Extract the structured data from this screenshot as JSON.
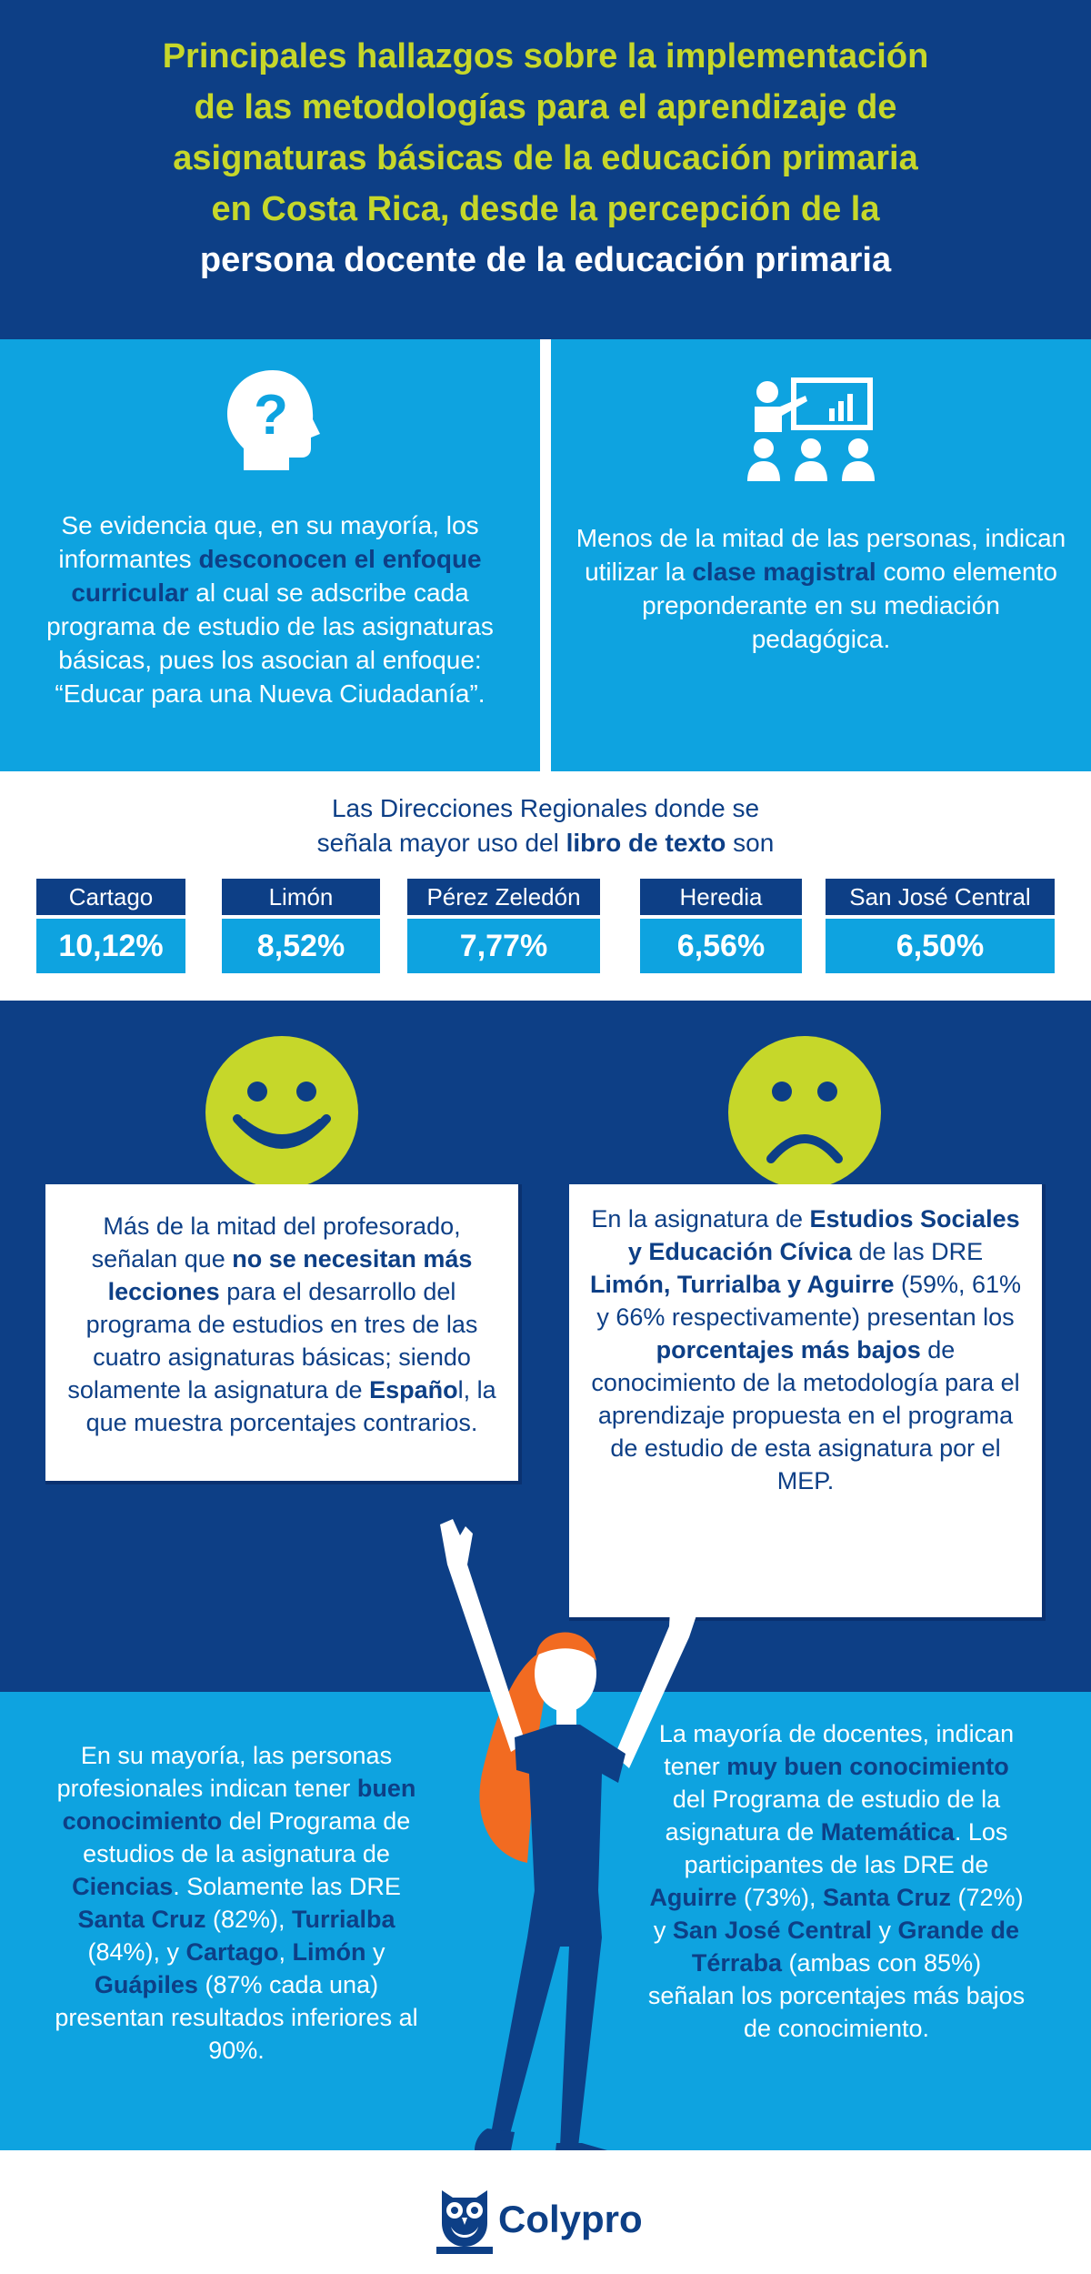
{
  "header": {
    "title_line1": "Principales hallazgos sobre la implementación",
    "title_line2": "de las metodologías para el aprendizaje de",
    "title_line3": "asignaturas básicas de la educación primaria",
    "title_line4": "en Costa Rica, desde la percepción de la",
    "title_line5": "persona docente de la educación primaria"
  },
  "finding_curriculum": {
    "icon": "head-question-icon",
    "text_before": "Se evidencia que, en su mayoría, los informantes ",
    "bold": "desconocen el enfoque curricular",
    "text_after": " al cual se adscribe cada programa de estudio de las asignaturas básicas, pues los asocian al enfoque: “Educar para una Nueva Ciudadanía”."
  },
  "finding_lecture": {
    "icon": "presentation-audience-icon",
    "text_before": "Menos de la mitad de las personas, indican utilizar la ",
    "bold": "clase magistral",
    "text_after": " como elemento preponderante en su mediación pedagógica."
  },
  "regions": {
    "intro_line1": "Las Direcciones Regionales donde se",
    "intro_line2_before": "señala mayor uso del ",
    "intro_line2_bold": "libro de texto",
    "intro_line2_after": " son",
    "items": [
      {
        "name": "Cartago",
        "percent": "10,12%"
      },
      {
        "name": "Limón",
        "percent": "8,52%"
      },
      {
        "name": "Pérez Zeledón",
        "percent": "7,77%"
      },
      {
        "name": "Heredia",
        "percent": "6,56%"
      },
      {
        "name": "San José Central",
        "percent": "6,50%"
      }
    ]
  },
  "finding_lessons": {
    "icon": "happy-face-icon",
    "t1": "Más de la mitad del profesorado, señalan que ",
    "b1": "no se necesitan más lecciones",
    "t2": " para el desarrollo del programa de estudios en tres de las cuatro asignaturas básicas; siendo solamente la asignatura de ",
    "b2": "Españo",
    "t3": "l, la que muestra porcentajes contrarios."
  },
  "finding_social": {
    "icon": "sad-face-icon",
    "t1": "En la asignatura de ",
    "b1": "Estudios Sociales y Educación Cívica",
    "t2": " de las DRE ",
    "b2": "Limón, Turrialba y Aguirre",
    "t3": " (59%, 61% y 66% respectivamente) presentan los ",
    "b3": "porcentajes más bajos",
    "t4": " de conocimiento de la metodología para el aprendizaje propuesta en el programa de estudio de esta asignatura por el MEP."
  },
  "finding_science": {
    "t1": "En su mayoría, las personas profesionales indican tener ",
    "b1": "buen conocimiento",
    "t2": " del Programa de estudios de la asignatura de ",
    "b2": "Ciencias",
    "t3": ". Solamente las DRE ",
    "b3": "Santa Cruz",
    "t4": " (82%), ",
    "b4": "Turrialba",
    "t5": " (84%), y ",
    "b5": "Cartago",
    "t6": ", ",
    "b6": "Limón",
    "t7": " y ",
    "b7": "Guápiles",
    "t8": " (87% cada una) presentan resultados inferiores al 90%."
  },
  "finding_math": {
    "t1": "La mayoría de docentes, indican tener ",
    "b1": "muy buen conocimiento",
    "t2": " del Programa de estudio de la asignatura de ",
    "b2": "Matemática",
    "t3": ". Los participantes de las DRE de ",
    "b3": "Aguirre",
    "t4": " (73%), ",
    "b4": "Santa Cruz",
    "t5": " (72%) y ",
    "b5": "San José Central",
    "t6": " y ",
    "b6": "Grande de Térraba",
    "t7": " (ambas con 85%) señalan los porcentajes más bajos de conocimiento."
  },
  "footer": {
    "brand": "Colypro",
    "icon": "owl-logo-icon"
  },
  "colors": {
    "dark_blue": "#0d3f86",
    "light_blue": "#0ea3e0",
    "lime": "#c6d72a",
    "orange": "#f26b21"
  }
}
